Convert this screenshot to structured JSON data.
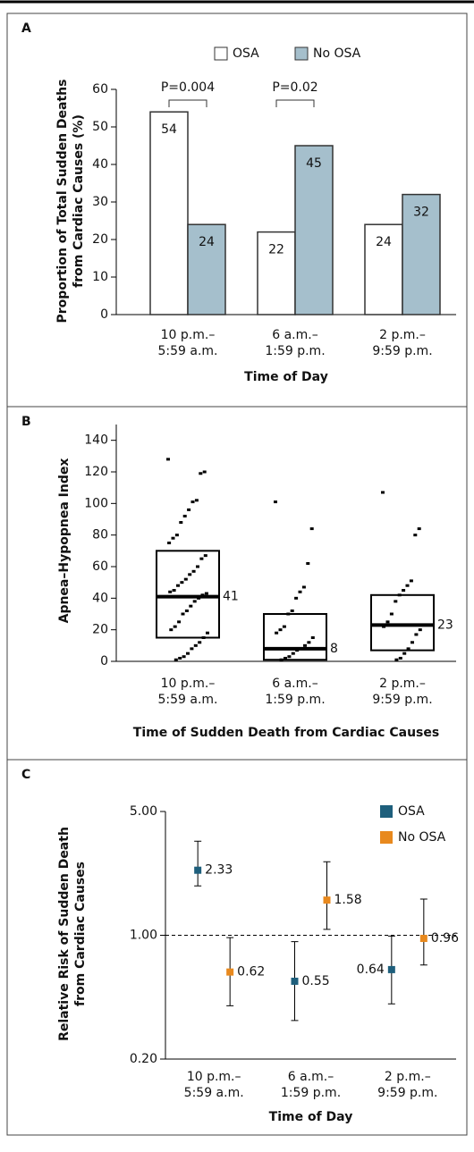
{
  "chart_data": [
    {
      "type": "bar",
      "label": "A",
      "ylabel": [
        "Proportion of Total Sudden Deaths",
        "from Cardiac Causes (%)"
      ],
      "xlabel": "Time of Day",
      "categories": [
        [
          "10 p.m.–",
          "5:59 a.m."
        ],
        [
          "6 a.m.–",
          "1:59 p.m."
        ],
        [
          "2 p.m.–",
          "9:59 p.m."
        ]
      ],
      "series": [
        {
          "name": "OSA",
          "color": "#ffffff",
          "values": [
            54,
            22,
            24
          ]
        },
        {
          "name": "No OSA",
          "color": "#a5bfcc",
          "values": [
            24,
            45,
            32
          ]
        }
      ],
      "annotations": [
        {
          "text": "P=0.004",
          "category": 0
        },
        {
          "text": "P=0.02",
          "category": 1
        }
      ],
      "ylim": [
        0,
        60
      ],
      "yticks": [
        0,
        10,
        20,
        30,
        40,
        50,
        60
      ]
    },
    {
      "type": "box",
      "label": "B",
      "ylabel": [
        "Apnea–Hypopnea Index"
      ],
      "xlabel": "Time of Sudden Death from Cardiac Causes",
      "categories": [
        [
          "10 p.m.–",
          "5:59 a.m."
        ],
        [
          "6 a.m.–",
          "1:59 p.m."
        ],
        [
          "2 p.m.–",
          "9:59 p.m."
        ]
      ],
      "color": "#000000",
      "medians": [
        41,
        8,
        23
      ],
      "q1": [
        15,
        1,
        7
      ],
      "q3": [
        70,
        30,
        42
      ],
      "points": [
        [
          128,
          120,
          119,
          102,
          101,
          96,
          92,
          88,
          80,
          78,
          75,
          67,
          65,
          60,
          57,
          55,
          52,
          50,
          48,
          45,
          44,
          43,
          42,
          40,
          38,
          35,
          32,
          30,
          25,
          22,
          20,
          18,
          15,
          12,
          10,
          8,
          5,
          3,
          2,
          1
        ],
        [
          101,
          84,
          62,
          47,
          44,
          40,
          32,
          30,
          22,
          20,
          18,
          15,
          12,
          10,
          8,
          7,
          5,
          3,
          2,
          1
        ],
        [
          107,
          84,
          80,
          51,
          48,
          45,
          42,
          38,
          30,
          25,
          22,
          20,
          17,
          12,
          8,
          5,
          2,
          1
        ]
      ],
      "ylim": [
        0,
        150
      ],
      "yticks": [
        0,
        20,
        40,
        60,
        80,
        100,
        120,
        140
      ]
    },
    {
      "type": "errorbar",
      "label": "C",
      "ylabel": [
        "Relative Risk of Sudden Death",
        "from Cardiac Causes"
      ],
      "xlabel": "Time of Day",
      "categories": [
        [
          "10 p.m.–",
          "5:59 a.m."
        ],
        [
          "6 a.m.–",
          "1:59 p.m."
        ],
        [
          "2 p.m.–",
          "9:59 p.m."
        ]
      ],
      "series": [
        {
          "name": "OSA",
          "color": "#1e5f7c",
          "values": [
            2.33,
            0.55,
            0.64
          ],
          "lower": [
            1.9,
            0.33,
            0.41
          ],
          "upper": [
            3.4,
            0.92,
            0.99
          ]
        },
        {
          "name": "No OSA",
          "color": "#e8891e",
          "values": [
            0.62,
            1.58,
            0.96
          ],
          "lower": [
            0.4,
            1.08,
            0.68
          ],
          "upper": [
            0.97,
            2.6,
            1.6
          ]
        }
      ],
      "log_scale": true,
      "refline": 1,
      "ylim": [
        0.2,
        5
      ],
      "yticks": [
        {
          "value": 0.2,
          "label": "0.20"
        },
        {
          "value": 1,
          "label": "1.00"
        },
        {
          "value": 5,
          "label": "5.00"
        }
      ]
    }
  ]
}
